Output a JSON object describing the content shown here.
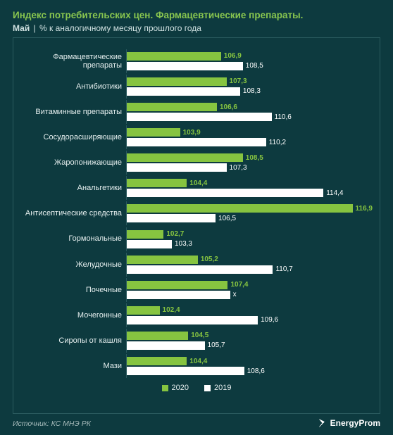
{
  "style": {
    "bg": "#0d3a3f",
    "title_color": "#88c54f",
    "subtitle_color": "#cfe0e0",
    "grid_color": "#2a5a5e",
    "label_color": "#e6efef",
    "footer_color": "#a8bcbc"
  },
  "title": "Индекс потребительских цен. Фармацевтические препараты.",
  "subtitle_month": "Май",
  "subtitle_sep": "|",
  "subtitle_text": "% к аналогичному месяцу прошлого года",
  "series": [
    {
      "name": "2020",
      "color": "#86c440"
    },
    {
      "name": "2019",
      "color": "#ffffff"
    }
  ],
  "chart": {
    "type": "grouped-hbar",
    "xmin": 100,
    "xmax": 118,
    "categories": [
      {
        "label": "Фармацевтические препараты",
        "v1": 106.9,
        "v2": 108.5
      },
      {
        "label": "Антибиотики",
        "v1": 107.3,
        "v2": 108.3
      },
      {
        "label": "Витаминные препараты",
        "v1": 106.6,
        "v2": 110.6
      },
      {
        "label": "Сосудорасширяющие",
        "v1": 103.9,
        "v2": 110.2
      },
      {
        "label": "Жаропонижающие",
        "v1": 108.5,
        "v2": 107.3
      },
      {
        "label": "Анальгетики",
        "v1": 104.4,
        "v2": 114.4
      },
      {
        "label": "Антисептические средства",
        "v1": 116.9,
        "v2": 106.5
      },
      {
        "label": "Гормональные",
        "v1": 102.7,
        "v2": 103.3
      },
      {
        "label": "Желудочные",
        "v1": 105.2,
        "v2": 110.7
      },
      {
        "label": "Почечные",
        "v1": 107.4,
        "v2": null,
        "v2_label": "х"
      },
      {
        "label": "Мочегонные",
        "v1": 102.4,
        "v2": 109.6
      },
      {
        "label": "Сиропы от кашля",
        "v1": 104.5,
        "v2": 105.7
      },
      {
        "label": "Мази",
        "v1": 104.4,
        "v2": 108.6
      }
    ]
  },
  "source": "Источник: КС МНЭ РК",
  "brand": "EnergyProm"
}
